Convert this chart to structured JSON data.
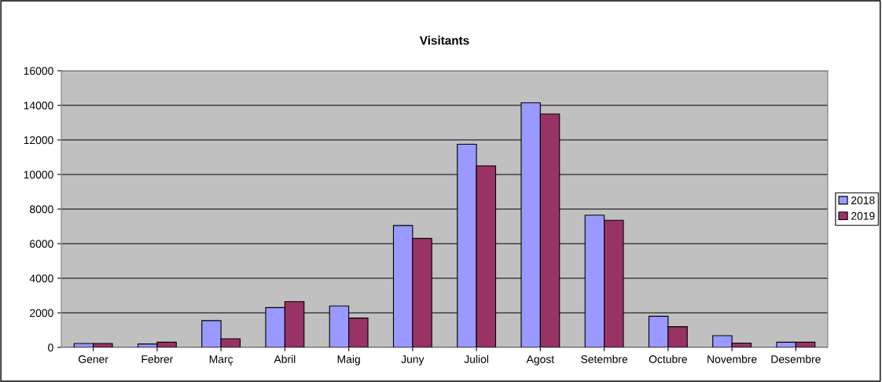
{
  "chart_data": {
    "type": "bar",
    "title": "Visitants",
    "categories": [
      "Gener",
      "Febrer",
      "Març",
      "Abril",
      "Maig",
      "Juny",
      "Juliol",
      "Agost",
      "Setembre",
      "Octubre",
      "Novembre",
      "Desembre"
    ],
    "series": [
      {
        "name": "2018",
        "color": "#9999ff",
        "values": [
          230,
          200,
          1550,
          2300,
          2400,
          7050,
          11750,
          14150,
          7650,
          1800,
          680,
          300
        ]
      },
      {
        "name": "2019",
        "color": "#993366",
        "values": [
          230,
          300,
          500,
          2650,
          1700,
          6300,
          10500,
          13500,
          7350,
          1200,
          250,
          300
        ]
      }
    ],
    "ylim": [
      0,
      16000
    ],
    "yticks": [
      0,
      2000,
      4000,
      6000,
      8000,
      10000,
      12000,
      14000,
      16000
    ],
    "grid": "y",
    "legend": "right"
  }
}
